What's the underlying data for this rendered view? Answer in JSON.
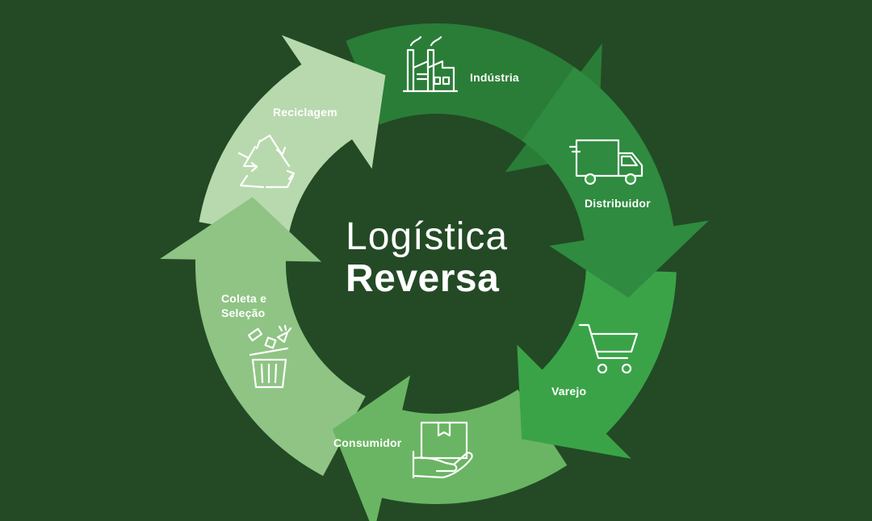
{
  "title": {
    "line1": "Logística",
    "line2": "Reversa"
  },
  "stages": [
    {
      "id": "industria",
      "label": "Indústria",
      "icon": "factory-icon",
      "color": "#2e8b3f"
    },
    {
      "id": "distribuidor",
      "label": "Distribuidor",
      "icon": "delivery-truck-icon",
      "color": "#3aa348"
    },
    {
      "id": "varejo",
      "label": "Varejo",
      "icon": "shopping-cart-icon",
      "color": "#6ab563"
    },
    {
      "id": "consumidor",
      "label": "Consumidor",
      "icon": "hand-box-icon",
      "color": "#8fc484"
    },
    {
      "id": "coleta",
      "label_line1": "Coleta e",
      "label_line2": "Seleção",
      "icon": "trash-bin-icon",
      "color": "#b8d9ae"
    },
    {
      "id": "reciclagem",
      "label": "Reciclagem",
      "icon": "recycle-icon",
      "color": "#2a7d37"
    }
  ],
  "colors": {
    "background": "#234a25",
    "text": "#ffffff"
  }
}
